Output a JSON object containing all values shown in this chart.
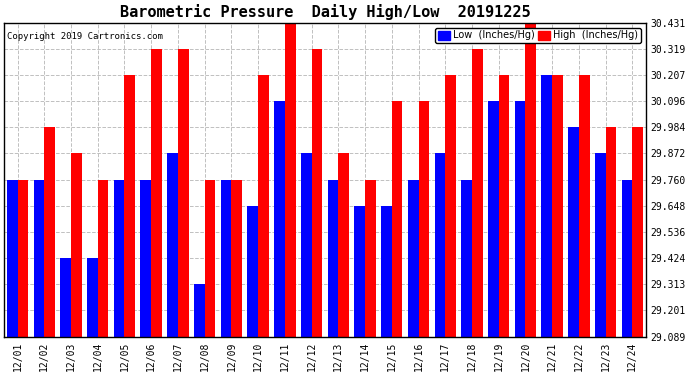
{
  "title": "Barometric Pressure  Daily High/Low  20191225",
  "copyright": "Copyright 2019 Cartronics.com",
  "ylabel_low": "Low  (Inches/Hg)",
  "ylabel_high": "High  (Inches/Hg)",
  "dates": [
    "12/01",
    "12/02",
    "12/03",
    "12/04",
    "12/05",
    "12/06",
    "12/07",
    "12/08",
    "12/09",
    "12/10",
    "12/11",
    "12/12",
    "12/13",
    "12/14",
    "12/15",
    "12/16",
    "12/17",
    "12/18",
    "12/19",
    "12/20",
    "12/21",
    "12/22",
    "12/23",
    "12/24"
  ],
  "low": [
    29.76,
    29.76,
    29.424,
    29.424,
    29.76,
    29.76,
    29.872,
    29.313,
    29.76,
    29.648,
    30.096,
    29.872,
    29.76,
    29.648,
    29.648,
    29.76,
    29.872,
    29.76,
    30.096,
    30.096,
    30.207,
    29.984,
    29.872,
    29.76
  ],
  "high": [
    29.76,
    29.984,
    29.872,
    29.76,
    30.207,
    30.319,
    30.319,
    29.76,
    29.76,
    30.207,
    30.431,
    30.319,
    29.872,
    29.76,
    30.096,
    30.096,
    30.207,
    30.319,
    30.207,
    30.431,
    30.207,
    30.207,
    29.984,
    29.984
  ],
  "ylim_min": 29.089,
  "ylim_max": 30.431,
  "yticks": [
    29.089,
    29.201,
    29.313,
    29.424,
    29.536,
    29.648,
    29.76,
    29.872,
    29.984,
    30.096,
    30.207,
    30.319,
    30.431
  ],
  "low_color": "#0000ff",
  "high_color": "#ff0000",
  "bg_color": "#ffffff",
  "grid_color": "#c0c0c0",
  "title_fontsize": 11,
  "tick_fontsize": 7,
  "bar_width": 0.4
}
